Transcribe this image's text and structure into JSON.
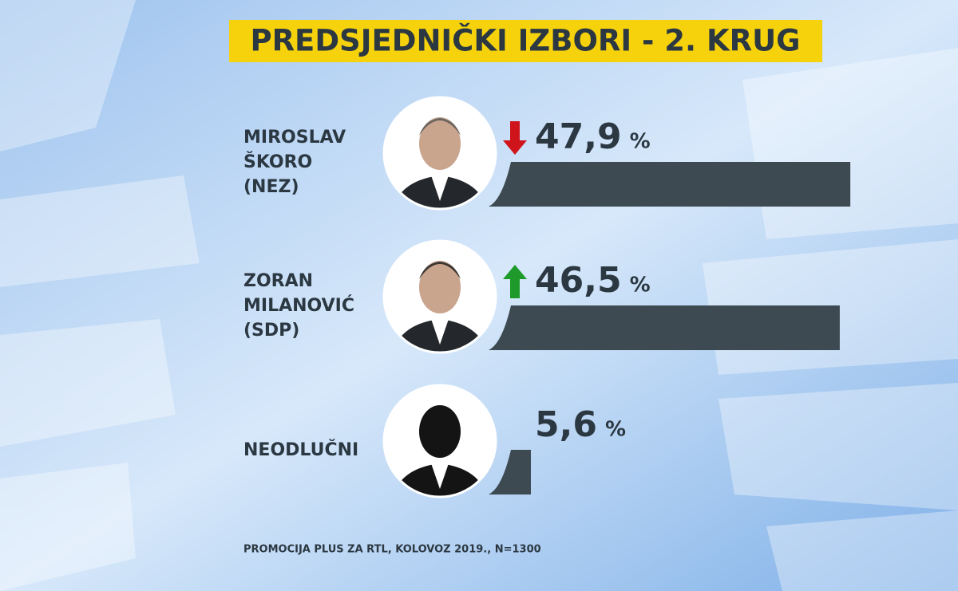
{
  "chart_data": {
    "type": "bar",
    "title": "PREDSJEDNIČKI IZBORI - 2. KRUG",
    "categories": [
      [
        "MIROSLAV",
        "ŠKORO",
        "(NEZ)"
      ],
      [
        "ZORAN",
        "MILANOVIĆ",
        "(SDP)"
      ],
      [
        "NEODLUČNI"
      ]
    ],
    "values": [
      47.9,
      46.5,
      5.6
    ],
    "value_labels": [
      "47,9",
      "46,5",
      "5,6"
    ],
    "unit": "%",
    "trends": [
      "down",
      "up",
      null
    ],
    "trend_colors": {
      "down": "#d0141c",
      "up": "#1e9a2a"
    },
    "color": "#3d4a52",
    "source": "PROMOCIJA PLUS ZA RTL, KOLOVOZ 2019., N=1300"
  }
}
